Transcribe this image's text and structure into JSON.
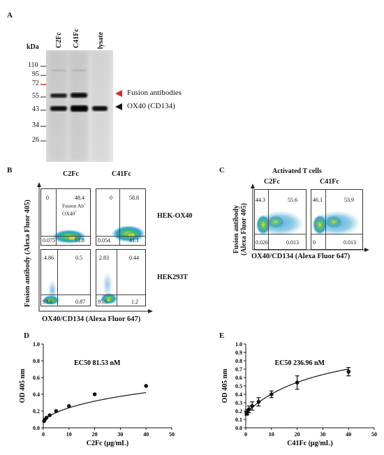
{
  "panel_a": {
    "letter": "A",
    "lane_labels": [
      "C2Fc",
      "C41Fc",
      "Cell lysate"
    ],
    "kda_label": "kDa",
    "markers": [
      "110",
      "95",
      "72",
      "55",
      "43",
      "34",
      "26"
    ],
    "arrow_fusion_label": "Fusion antibodies",
    "arrow_ox40_label": "OX40 (CD134)",
    "colors": {
      "fusion_arrow": "#e8202a",
      "ox40_arrow": "#111111",
      "marker_72": "#e8202a"
    }
  },
  "panel_b": {
    "letter": "B",
    "col_labels": [
      "C2Fc",
      "C41Fc"
    ],
    "row_labels": [
      "HEK-OX40",
      "HEK293T"
    ],
    "y_label": "Fusion antibody (Alexa Fluor 405)",
    "x_label": "OX40/CD134 (Alexa Fluor 647)",
    "gate_note_line1": "Fusion Ab",
    "gate_note_line2": "OX40",
    "plots": [
      {
        "ul": "0",
        "ur": "48.4",
        "ll": "0.075",
        "lr": "51.8"
      },
      {
        "ul": "0",
        "ur": "58.8",
        "ll": "0.054",
        "lr": "41.1"
      },
      {
        "ul": "4.86",
        "ur": "0.5",
        "ll": "93.8",
        "lr": "0.87"
      },
      {
        "ul": "2.83",
        "ur": "0.44",
        "ll": "95.5",
        "lr": "1.2"
      }
    ]
  },
  "panel_c": {
    "letter": "C",
    "title": "Activated T cells",
    "col_labels": [
      "C2Fc",
      "C41Fc"
    ],
    "y_label_line1": "Fusion antibody",
    "y_label_line2": "(Alexa Fluor 405)",
    "x_label": "OX40/CD134 (Alexa Fluor 647)",
    "plots": [
      {
        "ul": "44.3",
        "ur": "55.6",
        "ll": "0.026",
        "lr": "0.013"
      },
      {
        "ul": "46.1",
        "ur": "53.9",
        "ll": "0",
        "lr": "0.013"
      }
    ]
  },
  "panel_d": {
    "letter": "D"
  },
  "panel_e": {
    "letter": "E"
  },
  "chart_data": [
    {
      "type": "scatter",
      "panel": "D",
      "annotation": "EC50 81.53 nM",
      "xlabel": "C2Fc (μg/mL)",
      "ylabel": "OD 405 nm",
      "xlim": [
        0,
        50
      ],
      "ylim": [
        0,
        1.0
      ],
      "xticks": [
        "0",
        "10",
        "20",
        "30",
        "40",
        "50"
      ],
      "yticks": [
        "0.0",
        "0.2",
        "0.4",
        "0.6",
        "0.8",
        "1.0"
      ],
      "points": {
        "x": [
          0.3125,
          0.625,
          1.25,
          2.5,
          5,
          10,
          20,
          40
        ],
        "y": [
          0.08,
          0.1,
          0.12,
          0.15,
          0.2,
          0.26,
          0.4,
          0.5
        ]
      },
      "error": null,
      "fit": {
        "ec50": 81.53,
        "bottom": 0.08,
        "top": 1.0,
        "hill": 0.75
      }
    },
    {
      "type": "scatter",
      "panel": "E",
      "annotation": "EC50 236.96 nM",
      "xlabel": "C41Fc (μg/mL)",
      "ylabel": "OD 405 nm",
      "xlim": [
        0,
        50
      ],
      "ylim": [
        0,
        1.0
      ],
      "xticks": [
        "0",
        "10",
        "20",
        "30",
        "40",
        "50"
      ],
      "yticks": [
        "0.0",
        "0.1",
        "0.2",
        "0.3",
        "0.4",
        "0.5",
        "0.6",
        "0.7",
        "0.8",
        "0.9",
        "1.0"
      ],
      "points": {
        "x": [
          0.3125,
          0.625,
          1.25,
          2.5,
          5,
          10,
          20,
          40
        ],
        "y": [
          0.17,
          0.19,
          0.22,
          0.26,
          0.31,
          0.4,
          0.54,
          0.67
        ]
      },
      "error": [
        0.02,
        0.03,
        0.04,
        0.05,
        0.05,
        0.04,
        0.08,
        0.05
      ],
      "fit": {
        "bottom": 0.17,
        "top": 1.1,
        "hill": 1.0,
        "ec50": 30
      }
    }
  ]
}
